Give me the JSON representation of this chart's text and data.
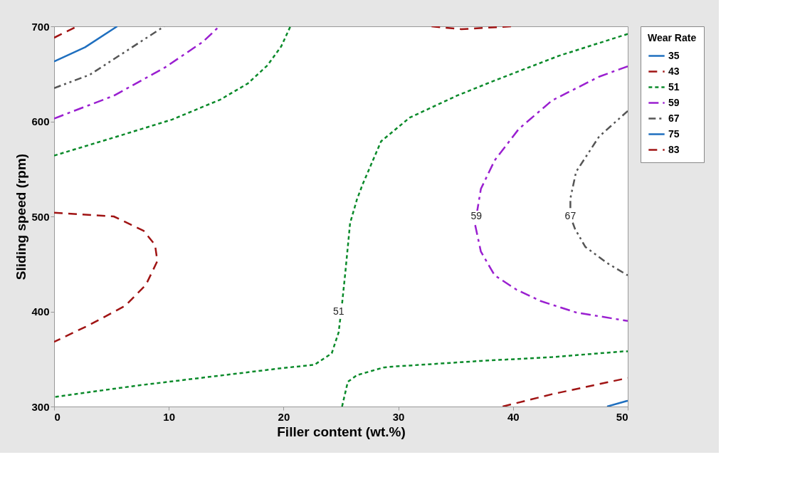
{
  "chart_data": {
    "type": "line",
    "xlabel": "Filler content (wt.%)",
    "ylabel": "Sliding speed (rpm)",
    "legend_title": "Wear Rate",
    "legend": "right",
    "grid": false,
    "xlim": [
      0,
      50
    ],
    "ylim": [
      300,
      700
    ],
    "xticks": [
      0,
      10,
      20,
      30,
      40,
      50
    ],
    "yticks": [
      300,
      400,
      500,
      600,
      700
    ],
    "series": [
      {
        "name": "35",
        "color": "#1f6fbf",
        "line_style": "solid",
        "x": [
          48.2,
          49.9,
          50
        ],
        "values": [
          300,
          305.8,
          306
        ]
      },
      {
        "name": "43",
        "color": "#a01414",
        "line_style": "dashed",
        "x": [
          39.1,
          43.4,
          49.6,
          50,
          null,
          0,
          5.2,
          7.8,
          8.8,
          9.0,
          8.0,
          6.2,
          3.1,
          0,
          null,
          32.9,
          35.5,
          39.9
        ],
        "values": [
          300,
          313,
          329,
          330,
          null,
          504,
          500,
          485,
          470,
          453,
          428,
          406,
          386,
          368,
          null,
          700,
          697,
          700
        ]
      },
      {
        "name": "51",
        "color": "#0a8a2a",
        "line_style": "dotted",
        "x": [
          0,
          5.2,
          10.3,
          14.5,
          16.9,
          18.6,
          19.8,
          20.6,
          null,
          50,
          44.0,
          38.4,
          35.1,
          31.0,
          28.5,
          26.9,
          26.4,
          25.8,
          25.4,
          25.1,
          24.8,
          24.2,
          22.7,
          19.6,
          13.4,
          7.2,
          0,
          null,
          25.1,
          25.6,
          26.4,
          28.7,
          29.5,
          37.2,
          43.4,
          49.6,
          50
        ],
        "values": [
          564,
          583,
          602,
          623,
          640,
          659,
          679,
          700,
          null,
          692,
          669,
          643,
          627,
          604,
          579,
          534,
          518,
          493,
          443,
          408,
          378,
          356,
          344,
          340,
          331,
          322,
          310,
          null,
          300,
          326,
          333,
          341,
          342,
          348,
          352,
          358,
          358
        ]
      },
      {
        "name": "59",
        "color": "#9a1fd0",
        "line_style": "dashdot",
        "x": [
          0,
          5.2,
          9.7,
          13.0,
          14.4,
          null,
          50,
          47.5,
          43.4,
          40.5,
          38.4,
          37.2,
          36.8,
          36.7,
          37.2,
          38.4,
          40.3,
          42.4,
          45.5,
          50
        ],
        "values": [
          603,
          627,
          657,
          684,
          700,
          null,
          658,
          647,
          622,
          592,
          559,
          529,
          500,
          491,
          463,
          438,
          423,
          411,
          399,
          390
        ]
      },
      {
        "name": "67",
        "color": "#555555",
        "line_style": "dashdotdot",
        "x": [
          0,
          3.1,
          6.8,
          9.6,
          null,
          50,
          47.5,
          45.5,
          45.0,
          45.0,
          45.4,
          46.3,
          48.2,
          50
        ],
        "values": [
          635,
          649,
          678,
          700,
          null,
          611,
          584,
          547,
          519,
          500,
          487,
          468,
          451,
          438
        ]
      },
      {
        "name": "75",
        "color": "#1f6fbf",
        "line_style": "solid",
        "x": [
          0,
          2.7,
          5.5
        ],
        "values": [
          663,
          678,
          700
        ]
      },
      {
        "name": "83",
        "color": "#a01414",
        "line_style": "dashed",
        "x": [
          0,
          2.0
        ],
        "values": [
          688,
          700
        ]
      }
    ],
    "annotations": [
      {
        "text": "51",
        "x": 24.8,
        "y": 400
      },
      {
        "text": "59",
        "x": 36.8,
        "y": 500
      },
      {
        "text": "67",
        "x": 45.0,
        "y": 500
      }
    ]
  }
}
